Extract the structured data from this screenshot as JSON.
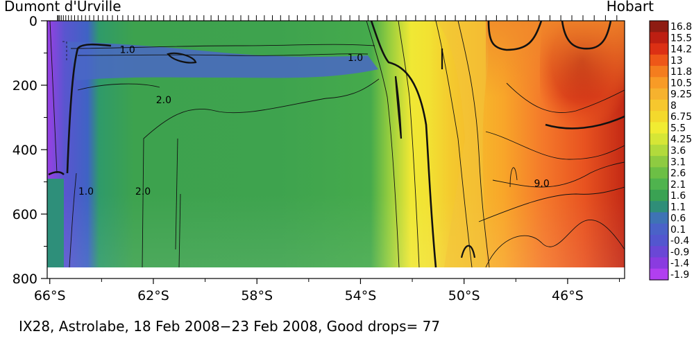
{
  "chart_data": {
    "type": "heatmap",
    "title_left": "Dumont d'Urville",
    "title_right": "Hobart",
    "caption": "IX28, Astrolabe, 18 Feb 2008−23 Feb 2008, Good drops= 77",
    "x_ticks": [
      {
        "lat": 66,
        "label": "66°S"
      },
      {
        "lat": 62,
        "label": "62°S"
      },
      {
        "lat": 58,
        "label": "58°S"
      },
      {
        "lat": 54,
        "label": "54°S"
      },
      {
        "lat": 50,
        "label": "50°S"
      },
      {
        "lat": 46,
        "label": "46°S"
      }
    ],
    "y_ticks": [
      {
        "depth": 0,
        "label": "0"
      },
      {
        "depth": 200,
        "label": "200"
      },
      {
        "depth": 400,
        "label": "400"
      },
      {
        "depth": 600,
        "label": "600"
      },
      {
        "depth": 800,
        "label": "800"
      }
    ],
    "xlim": [
      66.1,
      43.8
    ],
    "ylim": [
      0,
      800
    ],
    "data_max_depth": 760,
    "colorbar_levels": [
      "16.8",
      "15.5",
      "14.2",
      "13",
      "11.8",
      "10.5",
      "9.25",
      "8",
      "6.75",
      "5.5",
      "4.25",
      "3.6",
      "3.1",
      "2.6",
      "2.1",
      "1.6",
      "1.1",
      "0.6",
      "0.1",
      "-0.4",
      "-0.9",
      "-1.4",
      "-1.9"
    ],
    "colorbar_colors": [
      "#8e1c12",
      "#bd1f12",
      "#dc3014",
      "#ee5718",
      "#f47d1e",
      "#f89b26",
      "#f6b22e",
      "#f6c72e",
      "#f4d92c",
      "#f1ec32",
      "#d6e636",
      "#b2da3c",
      "#8ecb41",
      "#6cbf45",
      "#4fb34e",
      "#3aa253",
      "#2f8e78",
      "#3e73b5",
      "#4a62c8",
      "#5356cf",
      "#6a47d6",
      "#8a3be0",
      "#b13ff0"
    ],
    "contour_labels": [
      {
        "text": "1.0",
        "lat": 63.0,
        "depth": 100
      },
      {
        "text": "2.0",
        "lat": 61.6,
        "depth": 256
      },
      {
        "text": "1.0",
        "lat": 54.2,
        "depth": 125
      },
      {
        "text": "1.0",
        "lat": 64.6,
        "depth": 540
      },
      {
        "text": "2.0",
        "lat": 62.4,
        "depth": 540
      },
      {
        "text": "9.0",
        "lat": 47.0,
        "depth": 515
      }
    ],
    "drop_count": 77
  }
}
